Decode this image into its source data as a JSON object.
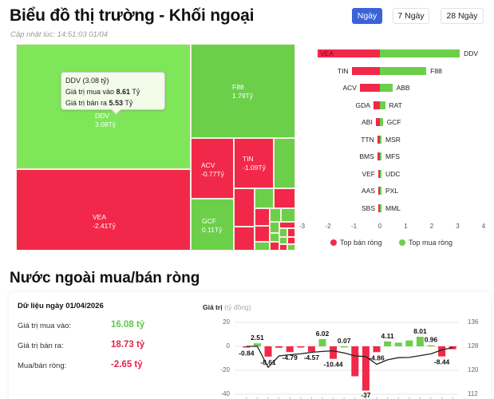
{
  "header": {
    "title": "Biểu đồ thị trường - Khối ngoại",
    "updated": "Cập nhật lúc: 14:51:03 01/04"
  },
  "period_tabs": [
    {
      "label": "Ngày",
      "active": true
    },
    {
      "label": "7 Ngày",
      "active": false
    },
    {
      "label": "28 Ngày",
      "active": false
    }
  ],
  "treemap": {
    "tiles": [
      {
        "ticker": "DDV",
        "value": "3.08Tỷ"
      },
      {
        "ticker": "F88",
        "value": "1.79Tỷ"
      },
      {
        "ticker": "VEA",
        "value": "-2.41Tỷ"
      },
      {
        "ticker": "ACV",
        "value": "-0.77Tỷ"
      },
      {
        "ticker": "TIN",
        "value": "-1.09Tỷ"
      },
      {
        "ticker": "GCF",
        "value": "0.11Tỷ"
      }
    ],
    "tooltip": {
      "title": "DDV (3.08 tỷ)",
      "buy_label": "Giá trị mua vào",
      "buy_value": "8.61",
      "sell_label": "Giá trị bán ra",
      "sell_value": "5.53",
      "unit": "Tỷ"
    }
  },
  "chart_data": [
    {
      "type": "bar",
      "title": "Top mua/bán ròng",
      "orientation": "horizontal-diverging",
      "categories_sell": [
        "VEA",
        "TIN",
        "ACV",
        "GDA",
        "ABI",
        "TTN",
        "BMS",
        "VEF",
        "AAS",
        "SBS"
      ],
      "categories_buy": [
        "DDV",
        "F88",
        "ABB",
        "RAT",
        "GCF",
        "MSR",
        "MFS",
        "UDC",
        "PXL",
        "MML"
      ],
      "series": [
        {
          "name": "Top bán ròng",
          "color": "#f2284a",
          "values": [
            -2.41,
            -1.09,
            -0.77,
            -0.25,
            -0.16,
            -0.1,
            -0.1,
            -0.02,
            -0.01,
            -0.01
          ]
        },
        {
          "name": "Top mua ròng",
          "color": "#6ccf4a",
          "values": [
            3.08,
            1.79,
            0.48,
            0.2,
            0.11,
            0.05,
            0.05,
            0.04,
            0.03,
            0.02
          ]
        }
      ],
      "xticks": [
        "-3",
        "-2",
        "-1",
        "0",
        "1",
        "2",
        "3",
        "4"
      ],
      "xlim": [
        -3,
        4
      ],
      "legend": [
        "Top bán ròng",
        "Top mua ròng"
      ],
      "legend_position": "bottom"
    },
    {
      "type": "bar",
      "title": "Nước ngoài mua/bán ròng",
      "ylabel": "Giá trị",
      "ylabel_unit": "(tỷ đồng)",
      "ylim": [
        -40,
        20
      ],
      "yticks": [
        "20",
        "0",
        "-20",
        "-40"
      ],
      "y2lim": [
        112,
        136
      ],
      "y2ticks": [
        "136",
        "128",
        "120",
        "112"
      ],
      "values": [
        -0.84,
        2.51,
        -8.61,
        -1.2,
        -4.79,
        -0.3,
        -4.57,
        6.02,
        -10.44,
        0.07,
        -25,
        -37,
        -4.86,
        4.11,
        3.1,
        4.9,
        8.01,
        0.96,
        -8.44,
        -2.4
      ],
      "data_labels": [
        "-0.84",
        "2.51",
        "-8.61",
        "",
        "-4.79",
        "",
        "-4.57",
        "6.02",
        "-10.44",
        "0.07",
        "",
        "-37",
        "-4.86",
        "4.11",
        "",
        "",
        "8.01",
        "0.96",
        "-8.44",
        ""
      ],
      "line_series": {
        "name": "Index",
        "values": [
          128,
          128,
          121,
          124.8,
          125.2,
          125.5,
          126,
          126.3,
          126.5,
          125.8,
          124.8,
          124.6,
          122,
          123.5,
          124.2,
          124.3,
          124.9,
          125.5,
          126.8,
          127.6
        ]
      },
      "grid": true
    }
  ],
  "net_section": {
    "title": "Nước ngoài mua/bán ròng",
    "date_label": "Dữ liệu ngày 01/04/2026",
    "stats": [
      {
        "label": "Giá trị mua vào:",
        "value": "16.08 tỷ",
        "color": "#5cc84a"
      },
      {
        "label": "Giá trị bán ra:",
        "value": "18.73 tỷ",
        "color": "#e0264a"
      },
      {
        "label": "Mua/bán ròng:",
        "value": "-2.65 tỷ",
        "color": "#e0264a"
      }
    ],
    "chart_ylabel": "Giá trị",
    "chart_unit": "(tỷ đồng)"
  },
  "colors": {
    "buy": "#6ccf4a",
    "sell": "#f2284a",
    "accent": "#3b63d9"
  }
}
